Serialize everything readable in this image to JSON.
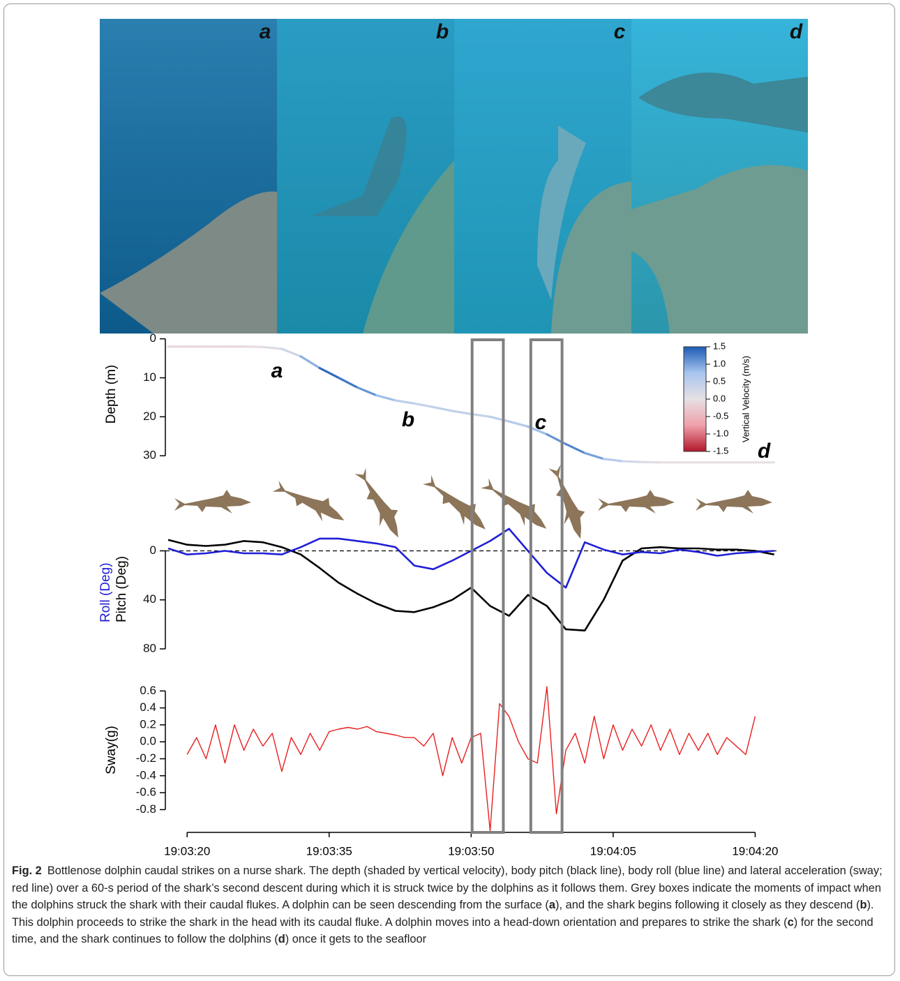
{
  "photos": {
    "labels": [
      "a",
      "b",
      "c",
      "d"
    ]
  },
  "chart_data": [
    {
      "type": "colored_line",
      "y_label": "Depth (m)",
      "x": [
        -2,
        0,
        2,
        4,
        6,
        8,
        10,
        12,
        14,
        16,
        18,
        20,
        22,
        24,
        26,
        28,
        30,
        32,
        34,
        36,
        38,
        40,
        42,
        44,
        46,
        48,
        50,
        52,
        54,
        56,
        58,
        60,
        62
      ],
      "values": [
        2,
        2,
        2,
        2,
        2,
        2.1,
        2.6,
        4.5,
        7.5,
        10,
        12.5,
        14.5,
        15.8,
        16.6,
        17.5,
        18.5,
        19.3,
        20,
        21.2,
        22.5,
        24.5,
        27,
        29.3,
        30.8,
        31.4,
        31.6,
        31.7,
        31.7,
        31.7,
        31.7,
        31.7,
        31.7,
        31.7
      ],
      "color_values": [
        -0.1,
        -0.1,
        -0.1,
        -0.1,
        -0.05,
        0.1,
        0.3,
        0.9,
        1.4,
        1.3,
        1.1,
        0.8,
        0.5,
        0.4,
        0.45,
        0.45,
        0.4,
        0.5,
        0.6,
        0.8,
        1.1,
        1.2,
        1.0,
        0.6,
        0.25,
        0.1,
        0,
        0,
        0,
        0,
        0,
        0,
        0
      ],
      "xlim": [
        -2.3,
        62.4
      ],
      "ylim": [
        33,
        -1
      ],
      "yticks": [
        0,
        10,
        20,
        30
      ],
      "annotations": [
        "a",
        "b",
        "c",
        "d"
      ],
      "colorbar": {
        "title": "Vertical Velocity (m/s)",
        "clim": [
          -1.5,
          1.5
        ],
        "ticks": [
          1.5,
          {
            "value": 1,
            "label": "1.0"
          },
          0.5,
          {
            "value": 0,
            "label": "0.0"
          },
          -0.5,
          {
            "value": -1,
            "label": "-1.0"
          },
          -1.5
        ],
        "colors": [
          "#b2182b",
          "#f0a0aa",
          "#e6e0e4",
          "#a8c5ee",
          "#1c5cb6"
        ]
      }
    },
    {
      "type": "line",
      "xlim": [
        -2.3,
        62.4
      ],
      "ylim": [
        80,
        -35
      ],
      "yticks": [
        0,
        40,
        80
      ],
      "reference_line": 0,
      "series": [
        {
          "name": "Pitch (Deg)",
          "color": "#000000",
          "x": [
            -2,
            0,
            2,
            4,
            6,
            8,
            10,
            12,
            14,
            16,
            18,
            20,
            22,
            24,
            26,
            28,
            30,
            32,
            34,
            36,
            38,
            40,
            42,
            44,
            46,
            48,
            50,
            52,
            54,
            56,
            58,
            60,
            62
          ],
          "values": [
            -9,
            -5,
            -4,
            -5,
            -8,
            -7,
            -3,
            3,
            14,
            26,
            35,
            43,
            49,
            50,
            46,
            40,
            30,
            45,
            53,
            36,
            45,
            64,
            65,
            40,
            8,
            -2,
            -3,
            -2,
            -2,
            -1,
            -1,
            0,
            3
          ]
        },
        {
          "name": "Roll (Deg)",
          "color": "#1f1fd6",
          "x": [
            -2,
            0,
            2,
            4,
            6,
            8,
            10,
            12,
            14,
            16,
            18,
            20,
            22,
            24,
            26,
            28,
            30,
            32,
            34,
            36,
            38,
            40,
            42,
            44,
            46,
            48,
            50,
            52,
            54,
            56,
            58,
            60,
            62
          ],
          "values": [
            -2,
            3,
            2,
            0,
            2,
            2,
            3,
            -3,
            -10,
            -10,
            -8,
            -6,
            -3,
            12,
            15,
            8,
            0,
            -8,
            -18,
            0,
            18,
            30,
            -7,
            -1,
            3,
            1,
            2,
            -1,
            1,
            4,
            2,
            1,
            0
          ]
        }
      ]
    },
    {
      "type": "line",
      "y_label": "Sway(g)",
      "color": "#e8201f",
      "x": [
        0,
        1,
        2,
        3,
        4,
        5,
        6,
        7,
        8,
        9,
        10,
        11,
        12,
        13,
        14,
        15,
        16,
        17,
        18,
        19,
        20,
        21,
        22,
        23,
        24,
        25,
        26,
        27,
        28,
        29,
        30,
        31,
        32,
        33,
        34,
        35,
        36,
        37,
        38,
        39,
        40,
        41,
        42,
        43,
        44,
        45,
        46,
        47,
        48,
        49,
        50,
        51,
        52,
        53,
        54,
        55,
        56,
        57,
        58,
        59,
        60
      ],
      "values": [
        -0.15,
        0.05,
        -0.2,
        0.2,
        -0.25,
        0.2,
        -0.1,
        0.15,
        -0.05,
        0.1,
        -0.35,
        0.05,
        -0.15,
        0.1,
        -0.1,
        0.12,
        0.15,
        0.17,
        0.15,
        0.18,
        0.12,
        0.1,
        0.08,
        0.05,
        0.05,
        -0.05,
        0.1,
        -0.4,
        0.05,
        -0.25,
        0.05,
        0.1,
        -1.05,
        0.45,
        0.3,
        0,
        -0.2,
        -0.25,
        0.65,
        -0.85,
        -0.1,
        0.1,
        -0.25,
        0.3,
        -0.2,
        0.2,
        -0.1,
        0.15,
        -0.05,
        0.2,
        -0.1,
        0.15,
        -0.15,
        0.1,
        -0.1,
        0.1,
        -0.15,
        0.05,
        -0.05,
        -0.15,
        0.3
      ],
      "xlim": [
        -2.3,
        62.4
      ],
      "ylim": [
        -1.06,
        0.66
      ],
      "yticks": [
        0.6,
        0.4,
        0.2,
        {
          "value": 0,
          "label": "0.0"
        },
        -0.2,
        -0.4,
        -0.6,
        -0.8
      ],
      "xticks": [
        {
          "value": 0,
          "label": "19:03:20"
        },
        {
          "value": 15,
          "label": "19:03:35"
        },
        {
          "value": 30,
          "label": "19:03:50"
        },
        {
          "value": 45,
          "label": "19:04:05"
        },
        {
          "value": 60,
          "label": "19:04:20"
        }
      ]
    }
  ],
  "impact_windows": [
    [
      30.1,
      33.4
    ],
    [
      36.3,
      39.6
    ]
  ],
  "caption": {
    "label": "Fig. 2",
    "parts": [
      {
        "text": "Bottlenose dolphin caudal strikes on a nurse shark. The depth (shaded by vertical velocity), body pitch (black line), body roll (blue line) and lateral acceleration (sway; red line) over a 60-s period of the shark’s second descent during which it is struck twice by the dolphins as it follows them. Grey boxes indicate the moments of impact when the dolphins struck the shark with their caudal flukes. A dolphin can be seen descending from the surface (",
        "bold": false
      },
      {
        "text": "a",
        "bold": true
      },
      {
        "text": "), and the shark begins following it closely as they descend (",
        "bold": false
      },
      {
        "text": "b",
        "bold": true
      },
      {
        "text": "). This dolphin proceeds to strike the shark in the head with its caudal fluke. A dolphin moves into a head-down orientation and prepares to strike the shark (",
        "bold": false
      },
      {
        "text": "c",
        "bold": true
      },
      {
        "text": ") for the second time, and the shark continues to follow the dolphins (",
        "bold": false
      },
      {
        "text": "d",
        "bold": true
      },
      {
        "text": ") once it gets to the seafloor",
        "bold": false
      }
    ]
  }
}
